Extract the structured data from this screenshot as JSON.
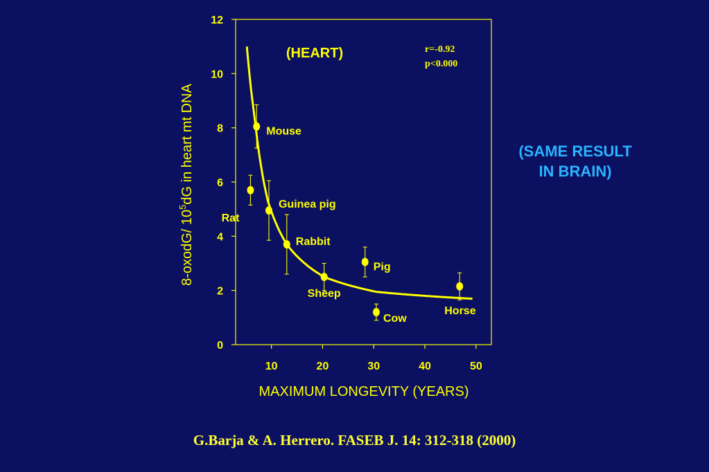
{
  "colors": {
    "background": "#0b1060",
    "chart": "#ffff00",
    "note": "#2ab4ff"
  },
  "chart_data": {
    "type": "scatter",
    "title": "(HEART)",
    "stats": {
      "r": "r=-0.92",
      "p": "p<0.000"
    },
    "xlabel": "MAXIMUM LONGEVITY (YEARS)",
    "ylabel_parts": {
      "pre": "8-oxodG/ 10",
      "sup": "5",
      "post": "dG in heart mt DNA"
    },
    "xlim": [
      3,
      53
    ],
    "ylim": [
      0,
      12
    ],
    "xticks": [
      "10",
      "20",
      "30",
      "40",
      "50"
    ],
    "yticks": [
      "0",
      "2",
      "4",
      "6",
      "8",
      "10",
      "12"
    ],
    "grid": false,
    "points": [
      {
        "label": "Mouse",
        "x": 7.1,
        "y": 8.05,
        "err": 0.8
      },
      {
        "label": "Rat",
        "x": 5.9,
        "y": 5.7,
        "err": 0.55
      },
      {
        "label": "Guinea pig",
        "x": 9.5,
        "y": 4.95,
        "err": 1.1
      },
      {
        "label": "Rabbit",
        "x": 13.0,
        "y": 3.7,
        "err": 1.1
      },
      {
        "label": "Sheep",
        "x": 20.3,
        "y": 2.5,
        "err": 0.5
      },
      {
        "label": "Pig",
        "x": 28.3,
        "y": 3.05,
        "err": 0.55
      },
      {
        "label": "Cow",
        "x": 30.5,
        "y": 1.2,
        "err": 0.3
      },
      {
        "label": "Horse",
        "x": 46.8,
        "y": 2.15,
        "err": 0.5
      }
    ],
    "fit": {
      "type": "power",
      "x": [
        5.2,
        49.3
      ],
      "points": [
        [
          5.2,
          11.0
        ],
        [
          6.7,
          8.4
        ],
        [
          9.3,
          5.3
        ],
        [
          13.0,
          3.7
        ],
        [
          20.3,
          2.5
        ],
        [
          30.5,
          1.95
        ],
        [
          46.8,
          1.72
        ]
      ]
    }
  },
  "side_note": {
    "line1": "(SAME RESULT",
    "line2": "IN BRAIN)"
  },
  "citation": "G.Barja & A. Herrero. FASEB J. 14: 312-318 (2000)"
}
